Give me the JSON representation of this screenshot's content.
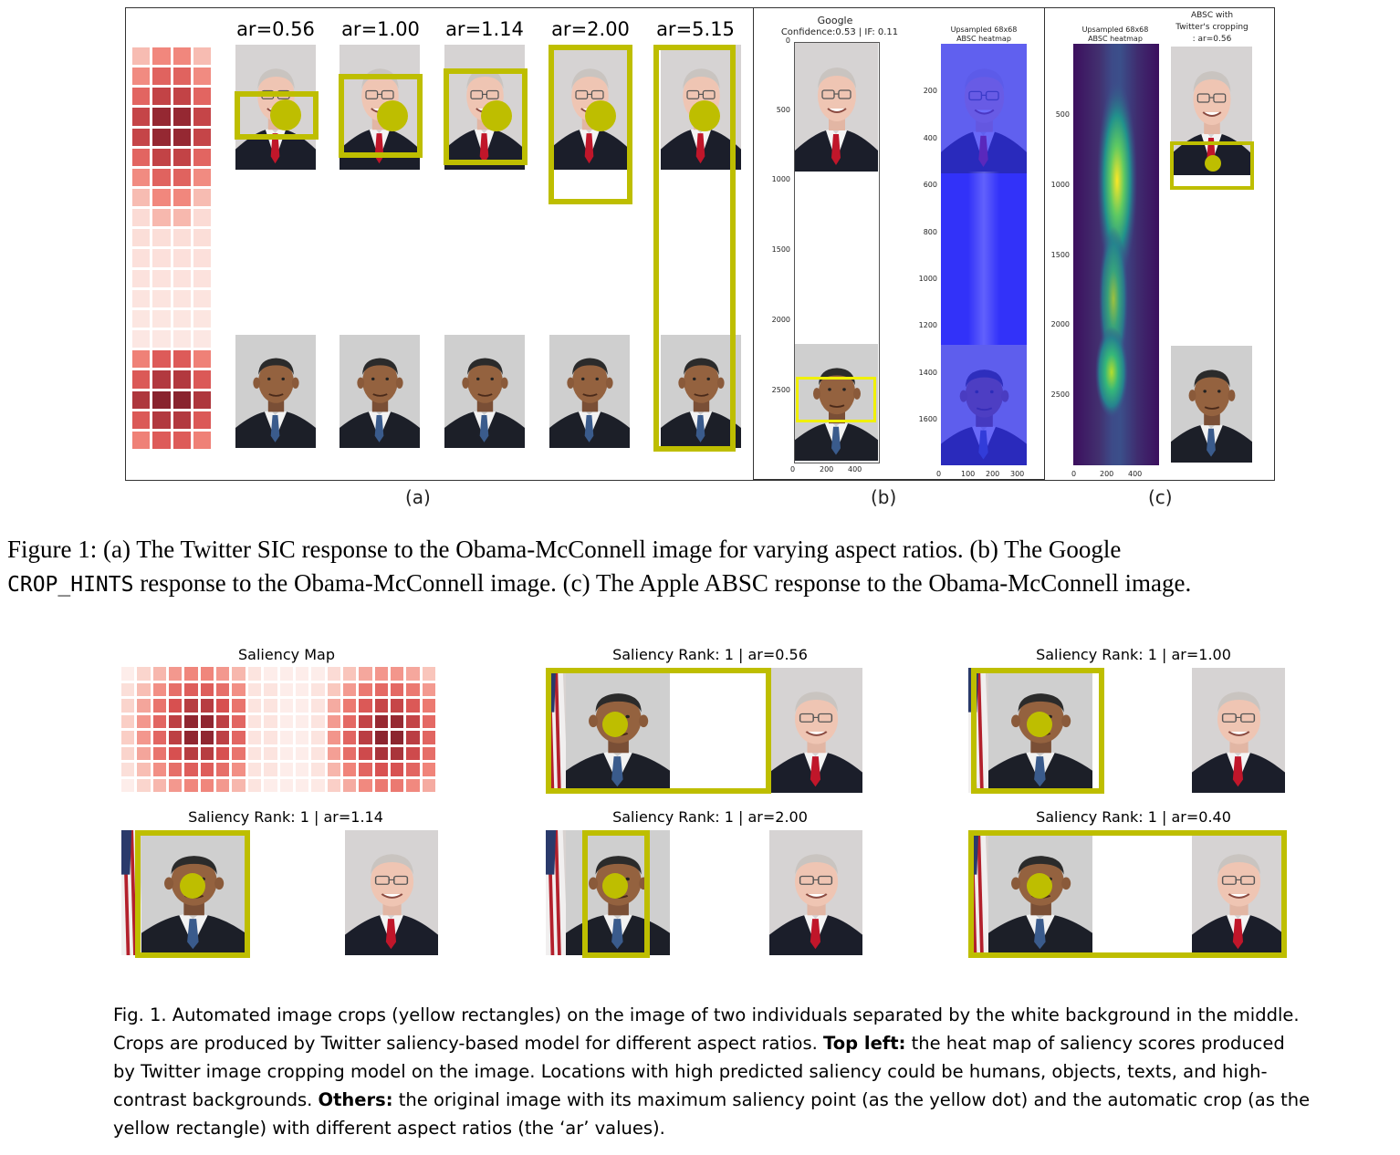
{
  "figure1": {
    "panel_a": {
      "ar_labels": [
        "ar=0.56",
        "ar=1.00",
        "ar=1.14",
        "ar=2.00",
        "ar=5.15"
      ],
      "letter": "(a)"
    },
    "panel_b": {
      "title_line1": "Google",
      "title_line2": "Confidence:0.53 | IF: 0.11",
      "heatmap_title_line1": "Upsampled 68x68",
      "heatmap_title_line2": "ABSC heatmap",
      "left_y_ticks": [
        "0",
        "500",
        "1000",
        "1500",
        "2000",
        "2500"
      ],
      "left_x_ticks": [
        "0",
        "200",
        "400"
      ],
      "right_y_ticks": [
        "200",
        "400",
        "600",
        "800",
        "1000",
        "1200",
        "1400",
        "1600"
      ],
      "right_x_ticks": [
        "0",
        "100",
        "200",
        "300"
      ],
      "letter": "(b)"
    },
    "panel_c": {
      "heatmap_title_line1": "Upsampled 68x68",
      "heatmap_title_line2": "ABSC heatmap",
      "crop_title_line1": "ABSC with",
      "crop_title_line2": "Twitter's cropping",
      "crop_title_line3": ": ar=0.56",
      "y_ticks": [
        "500",
        "1000",
        "1500",
        "2000",
        "2500"
      ],
      "x_ticks": [
        "0",
        "200",
        "400"
      ],
      "letter": "(c)"
    },
    "caption_text_1": "Figure 1: (a) The Twitter SIC response to the Obama-McConnell image for varying aspect ratios. (b) The Google",
    "caption_mono": "CROP_HINTS",
    "caption_text_2": " response to the Obama-McConnell image. (c) The Apple ABSC response to the Obama-McConnell image."
  },
  "figure2": {
    "titles": {
      "saliency_map": "Saliency Map",
      "t1": "Saliency Rank: 1 | ar=0.56",
      "t2": "Saliency Rank: 1 | ar=1.00",
      "t3": "Saliency Rank: 1 | ar=1.14",
      "t4": "Saliency Rank: 1 | ar=2.00",
      "t5": "Saliency Rank: 1 | ar=0.40"
    },
    "caption": {
      "part1": "Fig. 1.  Automated image crops (yellow rectangles) on the image of two individuals separated by the white background in the middle. Crops are produced by Twitter saliency-based model for different aspect ratios. ",
      "bold1": "Top left:",
      "part2": " the heat map of saliency scores produced by Twitter image cropping model on the image. Locations with high predicted saliency could be humans, objects, texts, and high-contrast backgrounds. ",
      "bold2": "Others:",
      "part3": " the original image with its maximum saliency point (as the yellow dot) and the automatic crop (as the yellow rectangle) with different aspect ratios (the ‘ar’ values)."
    }
  },
  "colors": {
    "crop_yellow": "#bebe00",
    "heat_dark": "#7a1d24",
    "heat_mid": "#e06060",
    "heat_light": "#fbe0dc",
    "google_box": "#f0f000",
    "blue_heat": "#3a3aff",
    "viridis_bg": "#3b1f6a"
  }
}
